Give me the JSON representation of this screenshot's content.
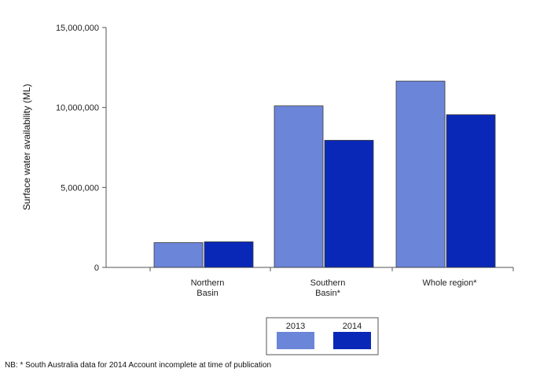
{
  "chart_data": {
    "type": "bar",
    "categories": [
      [
        "Northern",
        "Basin"
      ],
      [
        "Southern",
        "Basin*"
      ],
      [
        "Whole region*"
      ]
    ],
    "series": [
      {
        "name": "2013",
        "color": "#6b85d9",
        "values": [
          1550000,
          10100000,
          11650000
        ]
      },
      {
        "name": "2014",
        "color": "#0a28b8",
        "values": [
          1600000,
          7950000,
          9550000
        ]
      }
    ],
    "xlabel": "",
    "ylabel": "Surface water availability (ML)",
    "ylim": [
      0,
      15000000
    ],
    "yticks": [
      0,
      5000000,
      10000000,
      15000000
    ],
    "ytick_labels": [
      "0",
      "5,000,000",
      "10,000,000",
      "15,000,000"
    ],
    "grid": false,
    "legend_position": "bottom-center"
  },
  "footnote": "NB: * South Australia data for 2014 Account incomplete at time of publication"
}
